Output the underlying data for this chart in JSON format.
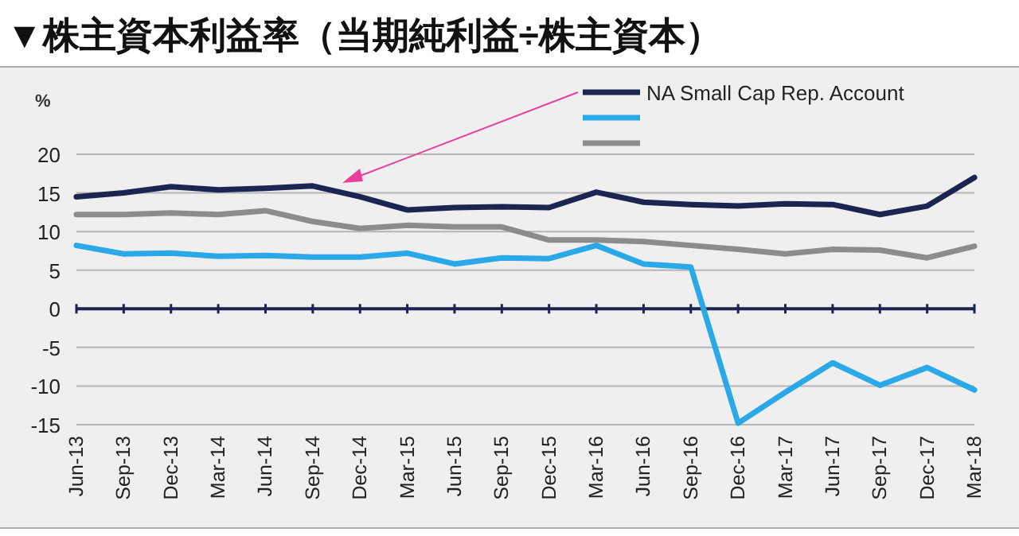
{
  "chart_data": {
    "type": "line",
    "title": "▼株主資本利益率（当期純利益÷株主資本）",
    "ylabel": "%",
    "categories": [
      "Jun-13",
      "Sep-13",
      "Dec-13",
      "Mar-14",
      "Jun-14",
      "Sep-14",
      "Dec-14",
      "Mar-15",
      "Jun-15",
      "Sep-15",
      "Dec-15",
      "Mar-16",
      "Jun-16",
      "Sep-16",
      "Dec-16",
      "Mar-17",
      "Jun-17",
      "Sep-17",
      "Dec-17",
      "Mar-18"
    ],
    "series": [
      {
        "name": "NA Small Cap Rep. Account",
        "color": "#1c2452",
        "values": [
          14.5,
          15,
          15.8,
          15.4,
          15.6,
          15.9,
          14.5,
          12.8,
          13.1,
          13.2,
          13.1,
          15.1,
          13.8,
          13.5,
          13.3,
          13.6,
          13.5,
          12.2,
          13.3,
          17.0
        ]
      },
      {
        "color": "#2aa8e8",
        "values": [
          8.2,
          7.1,
          7.2,
          6.8,
          6.9,
          6.7,
          6.7,
          7.2,
          5.8,
          6.6,
          6.5,
          8.2,
          5.8,
          5.4,
          -14.8,
          -10.8,
          -7,
          -9.9,
          -7.6,
          -10.5
        ]
      },
      {
        "color": "#8c8c8c",
        "values": [
          12.2,
          12.2,
          12.4,
          12.2,
          12.7,
          11.3,
          10.4,
          10.8,
          10.6,
          10.6,
          8.9,
          8.9,
          8.7,
          8.2,
          7.7,
          7.1,
          7.7,
          7.6,
          6.6,
          8.1
        ]
      }
    ],
    "ylim": [
      -15,
      20
    ],
    "yticks": [
      20,
      15,
      10,
      5,
      0,
      -5,
      -10,
      -15
    ],
    "grid": "y",
    "legend": "top right",
    "line_style": "solid",
    "marker": "none",
    "ref_lines": [
      {
        "axis": "y",
        "value": 0,
        "color": "#1c2452",
        "line_style": "solid"
      }
    ]
  }
}
